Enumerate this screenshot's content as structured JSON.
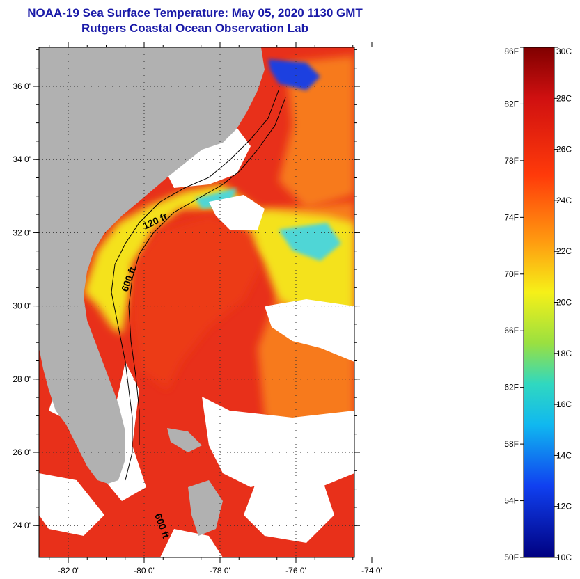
{
  "title": {
    "line1": "NOAA-19 Sea Surface Temperature:  May 05, 2020 1130 GMT",
    "line2": "Rutgers Coastal Ocean Observation Lab"
  },
  "map": {
    "lat_labels": [
      {
        "lat": 36,
        "label": "36 0'"
      },
      {
        "lat": 34,
        "label": "34 0'"
      },
      {
        "lat": 32,
        "label": "32 0'"
      },
      {
        "lat": 30,
        "label": "30 0'"
      },
      {
        "lat": 28,
        "label": "28 0'"
      },
      {
        "lat": 26,
        "label": "26 0'"
      },
      {
        "lat": 24,
        "label": "24 0'"
      }
    ],
    "lon_labels": [
      {
        "lon": -82,
        "label": "-82 0'"
      },
      {
        "lon": -80,
        "label": "-80 0'"
      },
      {
        "lon": -78,
        "label": "-78 0'"
      },
      {
        "lon": -76,
        "label": "-76 0'"
      },
      {
        "lon": -74,
        "label": "-74 0'"
      }
    ],
    "isobath_labels": {
      "shallow": "120 ft",
      "deep": "600 ft",
      "south": "600 ft"
    },
    "colors": {
      "land": "#b1b1b1",
      "cloud": "#ffffff",
      "warm": "#e8301a",
      "orange": "#f77a1e",
      "yellow": "#f4e21a",
      "cyan": "#4fd6d6",
      "blue": "#1d3fe0"
    }
  },
  "colorbar": {
    "f_labels": [
      "86F",
      "82F",
      "78F",
      "74F",
      "70F",
      "66F",
      "62F",
      "58F",
      "54F",
      "50F"
    ],
    "c_labels": [
      "30C",
      "28C",
      "26C",
      "24C",
      "22C",
      "20C",
      "18C",
      "16C",
      "14C",
      "12C",
      "10C"
    ]
  }
}
